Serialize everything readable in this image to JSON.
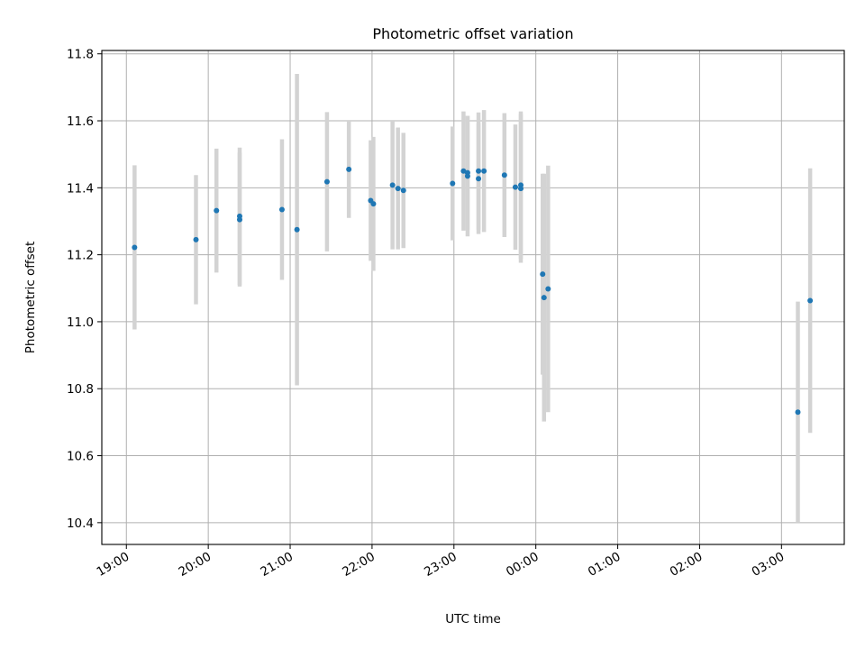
{
  "chart_data": {
    "type": "scatter",
    "title": "Photometric offset variation",
    "xlabel": "UTC time",
    "ylabel": "Photometric offset",
    "x_tick_labels": [
      "19:00",
      "20:00",
      "21:00",
      "22:00",
      "23:00",
      "00:00",
      "01:00",
      "02:00",
      "03:00"
    ],
    "y_tick_labels": [
      "10.4",
      "10.6",
      "10.8",
      "11.0",
      "11.2",
      "11.4",
      "11.6",
      "11.8"
    ],
    "x_ticks": [
      "19:00",
      "20:00",
      "21:00",
      "22:00",
      "23:00",
      "24:00",
      "25:00",
      "26:00",
      "27:00"
    ],
    "y_ticks": [
      10.4,
      10.6,
      10.8,
      11.0,
      11.2,
      11.4,
      11.6,
      11.8
    ],
    "xlim": [
      "18:42",
      "27:46"
    ],
    "ylim": [
      10.335,
      11.81
    ],
    "grid": true,
    "legend": "none",
    "point_color": "#1f77b4",
    "errorbar_color": "#d3d3d3",
    "points": [
      {
        "t": "19:06",
        "y": 11.222,
        "yerr": 0.245
      },
      {
        "t": "19:51",
        "y": 11.245,
        "yerr": 0.193
      },
      {
        "t": "20:06",
        "y": 11.332,
        "yerr": 0.185
      },
      {
        "t": "20:23",
        "y": 11.315,
        "yerr": 0.205
      },
      {
        "t": "20:23",
        "y": 11.305,
        "yerr": 0.2
      },
      {
        "t": "20:54",
        "y": 11.335,
        "yerr": 0.21
      },
      {
        "t": "21:05",
        "y": 11.275,
        "yerr": 0.465
      },
      {
        "t": "21:27",
        "y": 11.418,
        "yerr": 0.208
      },
      {
        "t": "21:43",
        "y": 11.455,
        "yerr": 0.145
      },
      {
        "t": "21:59",
        "y": 11.362,
        "yerr": 0.18
      },
      {
        "t": "22:01",
        "y": 11.352,
        "yerr": 0.2
      },
      {
        "t": "22:15",
        "y": 11.408,
        "yerr": 0.192
      },
      {
        "t": "22:19",
        "y": 11.398,
        "yerr": 0.182
      },
      {
        "t": "22:23",
        "y": 11.392,
        "yerr": 0.172
      },
      {
        "t": "22:59",
        "y": 11.413,
        "yerr": 0.17
      },
      {
        "t": "23:07",
        "y": 11.45,
        "yerr": 0.178
      },
      {
        "t": "23:10",
        "y": 11.445,
        "yerr": 0.17
      },
      {
        "t": "23:10",
        "y": 11.435,
        "yerr": 0.18
      },
      {
        "t": "23:18",
        "y": 11.45,
        "yerr": 0.175
      },
      {
        "t": "23:18",
        "y": 11.427,
        "yerr": 0.165
      },
      {
        "t": "23:22",
        "y": 11.45,
        "yerr": 0.182
      },
      {
        "t": "23:37",
        "y": 11.438,
        "yerr": 0.185
      },
      {
        "t": "23:45",
        "y": 11.402,
        "yerr": 0.187
      },
      {
        "t": "23:49",
        "y": 11.408,
        "yerr": 0.22
      },
      {
        "t": "23:49",
        "y": 11.398,
        "yerr": 0.222
      },
      {
        "t": "24:05",
        "y": 11.142,
        "yerr": 0.3
      },
      {
        "t": "24:06",
        "y": 11.072,
        "yerr": 0.37
      },
      {
        "t": "24:09",
        "y": 11.098,
        "yerr": 0.368
      },
      {
        "t": "27:12",
        "y": 10.73,
        "yerr": 0.33
      },
      {
        "t": "27:21",
        "y": 11.063,
        "yerr": 0.395
      }
    ]
  }
}
